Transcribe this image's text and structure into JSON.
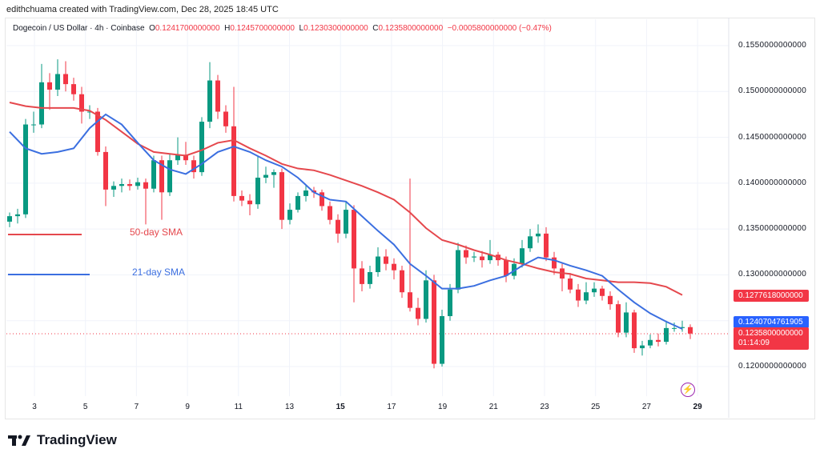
{
  "credit": "edithchuama created with TradingView.com, Dec 28, 2025 18:45 UTC",
  "legend": {
    "symbol": "Dogecoin / US Dollar · 4h · Coinbase",
    "o_label": "O",
    "o": "0.1241700000000",
    "h_label": "H",
    "h": "0.1245700000000",
    "l_label": "L",
    "l": "0.1230300000000",
    "c_label": "C",
    "c": "0.1235800000000",
    "change": "−0.0005800000000 (−0.47%)"
  },
  "annotations": {
    "sma50": "50-day SMA",
    "sma21": "21-day SMA"
  },
  "price_tags": {
    "sma50": "0.1277618000000",
    "sma21": "0.1240704761905",
    "last": "0.1235800000000",
    "countdown": "01:14:09"
  },
  "footer": {
    "brand": "TradingView"
  },
  "colors": {
    "up": "#089981",
    "down": "#f23645",
    "sma50": "#e5484d",
    "sma21": "#3b6fe0"
  },
  "chart_data": {
    "type": "candlestick",
    "title": "Dogecoin / US Dollar · 4h · Coinbase",
    "ylim": [
      0.1165,
      0.1575
    ],
    "y_ticks": [
      "0.1550000000000",
      "0.1500000000000",
      "0.1450000000000",
      "0.1400000000000",
      "0.1350000000000",
      "0.1300000000000",
      "0.1200000000000"
    ],
    "y_tick_values": [
      0.155,
      0.15,
      0.145,
      0.14,
      0.135,
      0.13,
      0.12
    ],
    "x_ticks": [
      "3",
      "5",
      "7",
      "9",
      "11",
      "13",
      "15",
      "17",
      "19",
      "21",
      "23",
      "25",
      "27",
      "29"
    ],
    "grid": true,
    "candles_ohlc": [
      [
        0.1358,
        0.1368,
        0.1352,
        0.1364
      ],
      [
        0.1364,
        0.1372,
        0.1356,
        0.1366
      ],
      [
        0.1366,
        0.147,
        0.1362,
        0.1464
      ],
      [
        0.1464,
        0.1478,
        0.1455,
        0.1464
      ],
      [
        0.1464,
        0.153,
        0.146,
        0.151
      ],
      [
        0.151,
        0.152,
        0.148,
        0.1502
      ],
      [
        0.1502,
        0.1535,
        0.1495,
        0.1519
      ],
      [
        0.1519,
        0.1533,
        0.15,
        0.1508
      ],
      [
        0.1508,
        0.1515,
        0.149,
        0.1497
      ],
      [
        0.1497,
        0.1505,
        0.1465,
        0.1478
      ],
      [
        0.1478,
        0.1485,
        0.147,
        0.1478
      ],
      [
        0.1478,
        0.1482,
        0.143,
        0.1434
      ],
      [
        0.1434,
        0.144,
        0.1375,
        0.1393
      ],
      [
        0.1393,
        0.1402,
        0.1385,
        0.1397
      ],
      [
        0.1397,
        0.1405,
        0.139,
        0.1399
      ],
      [
        0.1399,
        0.1404,
        0.1392,
        0.1397
      ],
      [
        0.1397,
        0.1406,
        0.1393,
        0.1401
      ],
      [
        0.1401,
        0.1405,
        0.1355,
        0.1394
      ],
      [
        0.1394,
        0.143,
        0.139,
        0.1425
      ],
      [
        0.1425,
        0.143,
        0.136,
        0.139
      ],
      [
        0.139,
        0.1432,
        0.1386,
        0.1425
      ],
      [
        0.1425,
        0.145,
        0.142,
        0.1431
      ],
      [
        0.1431,
        0.1445,
        0.142,
        0.1425
      ],
      [
        0.1425,
        0.143,
        0.1405,
        0.1412
      ],
      [
        0.1412,
        0.1472,
        0.1408,
        0.1467
      ],
      [
        0.1467,
        0.1532,
        0.146,
        0.1512
      ],
      [
        0.1512,
        0.1518,
        0.147,
        0.1478
      ],
      [
        0.1478,
        0.1485,
        0.1455,
        0.1462
      ],
      [
        0.1462,
        0.1505,
        0.138,
        0.1386
      ],
      [
        0.1386,
        0.1392,
        0.1375,
        0.1381
      ],
      [
        0.1381,
        0.1388,
        0.1365,
        0.1377
      ],
      [
        0.1377,
        0.143,
        0.1372,
        0.1406
      ],
      [
        0.1406,
        0.1418,
        0.14,
        0.1409
      ],
      [
        0.1409,
        0.1415,
        0.1395,
        0.1412
      ],
      [
        0.1412,
        0.1416,
        0.135,
        0.136
      ],
      [
        0.136,
        0.1378,
        0.1355,
        0.1371
      ],
      [
        0.1371,
        0.139,
        0.1368,
        0.1386
      ],
      [
        0.1386,
        0.1398,
        0.138,
        0.1392
      ],
      [
        0.1392,
        0.1396,
        0.1384,
        0.139
      ],
      [
        0.139,
        0.1393,
        0.137,
        0.1375
      ],
      [
        0.1375,
        0.138,
        0.1355,
        0.136
      ],
      [
        0.136,
        0.1366,
        0.1335,
        0.1345
      ],
      [
        0.1345,
        0.138,
        0.134,
        0.1371
      ],
      [
        0.1371,
        0.1376,
        0.127,
        0.1307
      ],
      [
        0.1307,
        0.1315,
        0.1282,
        0.129
      ],
      [
        0.129,
        0.131,
        0.1285,
        0.1303
      ],
      [
        0.1303,
        0.133,
        0.1298,
        0.132
      ],
      [
        0.132,
        0.1328,
        0.1305,
        0.1312
      ],
      [
        0.1312,
        0.1318,
        0.1295,
        0.1305
      ],
      [
        0.1305,
        0.131,
        0.1275,
        0.1281
      ],
      [
        0.1281,
        0.1405,
        0.126,
        0.1264
      ],
      [
        0.1264,
        0.1275,
        0.1245,
        0.1252
      ],
      [
        0.1252,
        0.1305,
        0.1248,
        0.1294
      ],
      [
        0.1294,
        0.13,
        0.1198,
        0.1203
      ],
      [
        0.1203,
        0.1262,
        0.12,
        0.1255
      ],
      [
        0.1255,
        0.129,
        0.125,
        0.1284
      ],
      [
        0.1284,
        0.1335,
        0.128,
        0.1327
      ],
      [
        0.1327,
        0.1332,
        0.1312,
        0.1319
      ],
      [
        0.1319,
        0.1325,
        0.1314,
        0.132
      ],
      [
        0.132,
        0.1326,
        0.1308,
        0.1316
      ],
      [
        0.1316,
        0.1338,
        0.1312,
        0.1322
      ],
      [
        0.1322,
        0.1325,
        0.131,
        0.1316
      ],
      [
        0.1316,
        0.132,
        0.1292,
        0.1299
      ],
      [
        0.1299,
        0.1318,
        0.1295,
        0.1312
      ],
      [
        0.1312,
        0.1338,
        0.1308,
        0.1329
      ],
      [
        0.1329,
        0.135,
        0.1325,
        0.1342
      ],
      [
        0.1342,
        0.1355,
        0.1335,
        0.1345
      ],
      [
        0.1345,
        0.1352,
        0.1315,
        0.1319
      ],
      [
        0.1319,
        0.1325,
        0.13,
        0.1307
      ],
      [
        0.1307,
        0.1312,
        0.1282,
        0.1296
      ],
      [
        0.1296,
        0.1302,
        0.128,
        0.1284
      ],
      [
        0.1284,
        0.129,
        0.1265,
        0.1272
      ],
      [
        0.1272,
        0.1292,
        0.1268,
        0.1281
      ],
      [
        0.1281,
        0.1292,
        0.1276,
        0.1285
      ],
      [
        0.1285,
        0.1288,
        0.1272,
        0.1277
      ],
      [
        0.1277,
        0.1282,
        0.1262,
        0.1268
      ],
      [
        0.1268,
        0.1272,
        0.1232,
        0.1237
      ],
      [
        0.1237,
        0.127,
        0.1232,
        0.1259
      ],
      [
        0.1259,
        0.1262,
        0.1215,
        0.122
      ],
      [
        0.122,
        0.1228,
        0.1212,
        0.1223
      ],
      [
        0.1223,
        0.1235,
        0.122,
        0.1229
      ],
      [
        0.1229,
        0.1236,
        0.1222,
        0.1227
      ],
      [
        0.1227,
        0.125,
        0.1224,
        0.1242
      ],
      [
        0.1242,
        0.1248,
        0.1238,
        0.1242
      ],
      [
        0.1242,
        0.125,
        0.1238,
        0.1243
      ],
      [
        0.1243,
        0.1246,
        0.123,
        0.1236
      ]
    ],
    "series": [
      {
        "name": "50-day SMA",
        "values": [
          0.1488,
          0.1484,
          0.1482,
          0.1482,
          0.1482,
          0.1479,
          0.1469,
          0.1456,
          0.1443,
          0.1434,
          0.1432,
          0.143,
          0.1436,
          0.1444,
          0.1447,
          0.1438,
          0.143,
          0.1421,
          0.1416,
          0.1414,
          0.1409,
          0.1403,
          0.1397,
          0.139,
          0.1382,
          0.1368,
          0.1351,
          0.1338,
          0.1333,
          0.1327,
          0.1322,
          0.1316,
          0.1312,
          0.1307,
          0.1303,
          0.1301,
          0.1296,
          0.1294,
          0.1292,
          0.1292,
          0.1291,
          0.1287,
          0.1278
        ]
      },
      {
        "name": "21-day SMA",
        "values": [
          0.1456,
          0.1438,
          0.1432,
          0.1434,
          0.1438,
          0.146,
          0.1475,
          0.1464,
          0.1444,
          0.1425,
          0.1415,
          0.141,
          0.1421,
          0.1434,
          0.144,
          0.1434,
          0.1425,
          0.1418,
          0.1406,
          0.139,
          0.1382,
          0.138,
          0.1364,
          0.1348,
          0.1333,
          0.1312,
          0.1299,
          0.1285,
          0.1285,
          0.1288,
          0.1294,
          0.1299,
          0.131,
          0.1319,
          0.1316,
          0.131,
          0.1305,
          0.1299,
          0.1284,
          0.127,
          0.1258,
          0.1249,
          0.1241
        ]
      }
    ],
    "last_price": 0.12358
  }
}
